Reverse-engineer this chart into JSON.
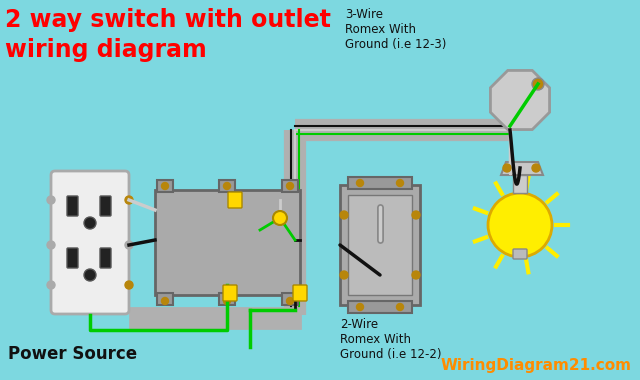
{
  "bg_color": "#7DD8E0",
  "title_line1": "2 way switch with outlet",
  "title_line2": "wiring diagram",
  "title_color": "#FF0000",
  "title_fontsize": 17,
  "label_top": "3-Wire\nRomex With\nGround (i.e 12-3)",
  "label_bottom": "2-Wire\nRomex With\nGround (i.e 12-2)",
  "label_power": "Power Source",
  "label_website": "WiringDiagram21.com",
  "label_website_color": "#FF8C00",
  "conduit_color": "#B0B0B0",
  "wire_black": "#111111",
  "wire_white": "#CCCCCC",
  "wire_green": "#00CC00",
  "wire_bare": "#C8A000",
  "outlet_body": "#DDDDDD",
  "switch_body": "#AAAAAA",
  "box_color": "#999999",
  "oct_color": "#BBBBBB",
  "gold": "#B8860B",
  "lamp_yellow": "#FFEE00"
}
